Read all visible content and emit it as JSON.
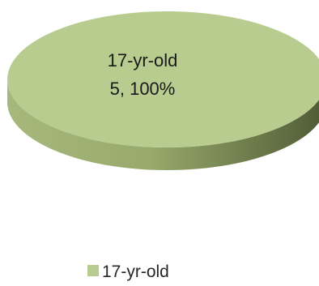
{
  "chart_data": {
    "type": "pie",
    "style": "3d",
    "categories": [
      "17-yr-old"
    ],
    "values": [
      5
    ],
    "percentages": [
      "100%"
    ],
    "data_labels": [
      {
        "category": "17-yr-old",
        "value_text": "5, 100%"
      }
    ],
    "legend": {
      "position": "bottom",
      "entries": [
        "17-yr-old"
      ]
    },
    "colors": {
      "slice_top": "#b9cc8f",
      "slice_side_dark": "#4f5a34",
      "slice_side_mid": "#97a96c",
      "slice_side_light": "#a6b87c"
    }
  }
}
